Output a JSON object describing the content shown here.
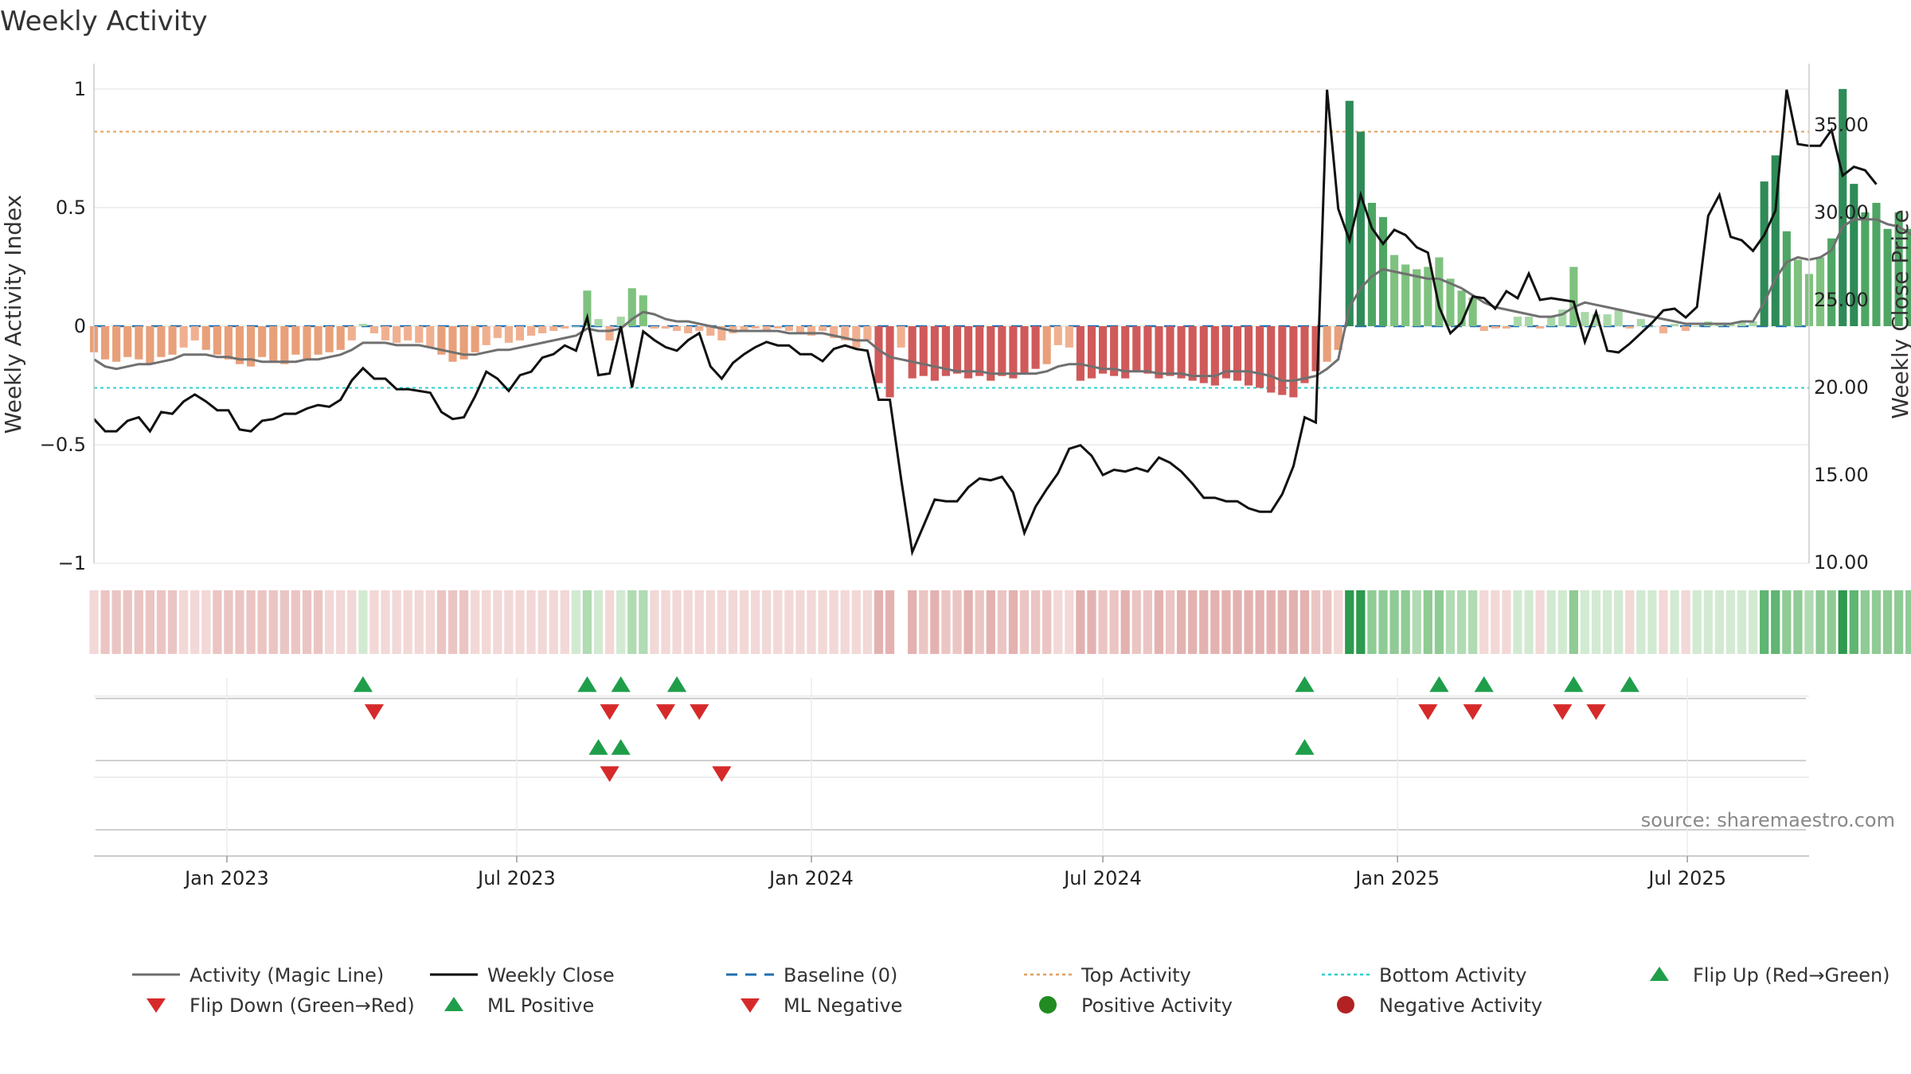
{
  "chart_data": {
    "type": "bar",
    "title": "Weekly Activity",
    "source": "source: sharemaestro.com",
    "ylabel_left": "Weekly Activity Index",
    "ylabel_right": "Weekly Close Price",
    "ylim_left": [
      -1.1,
      1.1
    ],
    "ylim_right": [
      8.6,
      38.4
    ],
    "xlim": [
      "2022-10-10",
      "2025-09-15"
    ],
    "left_ticks": [
      {
        "value": 1,
        "label": "1"
      },
      {
        "value": 0.5,
        "label": "0.5"
      },
      {
        "value": 0,
        "label": "0"
      },
      {
        "value": -0.5,
        "label": "−0.5"
      },
      {
        "value": -1,
        "label": "−1"
      }
    ],
    "right_ticks": [
      {
        "value": 35,
        "label": "35.00"
      },
      {
        "value": 30,
        "label": "30.00"
      },
      {
        "value": 25,
        "label": "25.00"
      },
      {
        "value": 20,
        "label": "20.00"
      },
      {
        "value": 15,
        "label": "15.00"
      },
      {
        "value": 10,
        "label": "10.00"
      }
    ],
    "x_ticks": [
      {
        "date": "2023-01-01",
        "label": "Jan 2023"
      },
      {
        "date": "2023-07-01",
        "label": "Jul 2023"
      },
      {
        "date": "2024-01-01",
        "label": "Jan 2024"
      },
      {
        "date": "2024-07-01",
        "label": "Jul 2024"
      },
      {
        "date": "2025-01-01",
        "label": "Jan 2025"
      },
      {
        "date": "2025-07-01",
        "label": "Jul 2025"
      }
    ],
    "start_week": "2022-10-10",
    "interval_days": 7,
    "reference_lines": {
      "top": 0.82,
      "bottom": -0.26,
      "baseline": 0
    },
    "activity": [
      -0.11,
      -0.14,
      -0.15,
      -0.13,
      -0.14,
      -0.16,
      -0.13,
      -0.12,
      -0.09,
      -0.06,
      -0.1,
      -0.12,
      -0.14,
      -0.16,
      -0.17,
      -0.13,
      -0.15,
      -0.16,
      -0.12,
      -0.14,
      -0.12,
      -0.11,
      -0.1,
      -0.06,
      0.01,
      -0.03,
      -0.06,
      -0.07,
      -0.06,
      -0.07,
      -0.09,
      -0.12,
      -0.15,
      -0.14,
      -0.11,
      -0.08,
      -0.05,
      -0.07,
      -0.06,
      -0.04,
      -0.03,
      -0.02,
      -0.01,
      0,
      0.15,
      0.03,
      -0.06,
      0.04,
      0.16,
      0.13,
      -0.01,
      -0.01,
      -0.02,
      -0.03,
      -0.02,
      -0.04,
      -0.06,
      -0.03,
      -0.02,
      -0.01,
      -0.02,
      -0.01,
      -0.02,
      -0.03,
      -0.04,
      -0.02,
      -0.05,
      -0.06,
      -0.09,
      -0.06,
      -0.24,
      -0.3,
      -0.09,
      -0.22,
      -0.21,
      -0.23,
      -0.21,
      -0.2,
      -0.22,
      -0.21,
      -0.23,
      -0.21,
      -0.22,
      -0.2,
      -0.18,
      -0.16,
      -0.08,
      -0.09,
      -0.23,
      -0.22,
      -0.2,
      -0.21,
      -0.22,
      -0.19,
      -0.2,
      -0.22,
      -0.21,
      -0.22,
      -0.23,
      -0.24,
      -0.25,
      -0.22,
      -0.23,
      -0.25,
      -0.26,
      -0.28,
      -0.29,
      -0.3,
      -0.24,
      -0.19,
      -0.15,
      -0.1,
      0.95,
      0.82,
      0.52,
      0.46,
      0.3,
      0.26,
      0.24,
      0.25,
      0.29,
      0.2,
      0.15,
      0.12,
      -0.02,
      -0.01,
      -0.01,
      0.04,
      0.04,
      -0.01,
      0.04,
      0.07,
      0.25,
      0.06,
      0.05,
      0.05,
      0.07,
      -0.01,
      0.03,
      0,
      -0.03,
      0.01,
      -0.02,
      0,
      0.02,
      0.01,
      0.01,
      0.02,
      0.02,
      0.61,
      0.72,
      0.4,
      0.28,
      0.22,
      0.29,
      0.37,
      1,
      0.6,
      0.48,
      0.52,
      0.41,
      0.48,
      0.41,
      0.3,
      0.29,
      0.26
    ],
    "magic_line": [
      -0.14,
      -0.17,
      -0.18,
      -0.17,
      -0.16,
      -0.16,
      -0.15,
      -0.14,
      -0.12,
      -0.12,
      -0.12,
      -0.13,
      -0.13,
      -0.14,
      -0.14,
      -0.15,
      -0.15,
      -0.15,
      -0.15,
      -0.14,
      -0.14,
      -0.13,
      -0.12,
      -0.1,
      -0.07,
      -0.07,
      -0.07,
      -0.08,
      -0.08,
      -0.08,
      -0.09,
      -0.1,
      -0.11,
      -0.12,
      -0.12,
      -0.11,
      -0.1,
      -0.1,
      -0.09,
      -0.08,
      -0.07,
      -0.06,
      -0.05,
      -0.04,
      -0.01,
      -0.02,
      -0.02,
      -0.01,
      0.03,
      0.06,
      0.05,
      0.03,
      0.02,
      0.02,
      0.01,
      0,
      -0.01,
      -0.02,
      -0.02,
      -0.02,
      -0.02,
      -0.02,
      -0.03,
      -0.03,
      -0.03,
      -0.03,
      -0.04,
      -0.05,
      -0.06,
      -0.06,
      -0.1,
      -0.13,
      -0.14,
      -0.15,
      -0.16,
      -0.17,
      -0.18,
      -0.19,
      -0.19,
      -0.19,
      -0.2,
      -0.2,
      -0.2,
      -0.2,
      -0.2,
      -0.19,
      -0.17,
      -0.16,
      -0.16,
      -0.17,
      -0.18,
      -0.18,
      -0.19,
      -0.19,
      -0.19,
      -0.2,
      -0.2,
      -0.2,
      -0.21,
      -0.21,
      -0.21,
      -0.19,
      -0.19,
      -0.19,
      -0.2,
      -0.21,
      -0.23,
      -0.23,
      -0.22,
      -0.21,
      -0.18,
      -0.14,
      0.08,
      0.16,
      0.21,
      0.24,
      0.23,
      0.22,
      0.21,
      0.2,
      0.2,
      0.18,
      0.16,
      0.13,
      0.1,
      0.08,
      0.07,
      0.06,
      0.05,
      0.04,
      0.04,
      0.05,
      0.08,
      0.1,
      0.09,
      0.08,
      0.07,
      0.06,
      0.05,
      0.04,
      0.03,
      0.02,
      0.01,
      0.01,
      0.01,
      0.01,
      0.01,
      0.02,
      0.02,
      0.1,
      0.2,
      0.27,
      0.29,
      0.28,
      0.29,
      0.32,
      0.42,
      0.45,
      0.45,
      0.45,
      0.43,
      0.42,
      0.39,
      0.36,
      0.33,
      0.3
    ],
    "weekly_close": [
      18.2,
      17.5,
      17.5,
      18.1,
      18.3,
      17.5,
      18.6,
      18.5,
      19.2,
      19.6,
      19.2,
      18.7,
      18.7,
      17.6,
      17.5,
      18.1,
      18.2,
      18.5,
      18.5,
      18.8,
      19,
      18.9,
      19.3,
      20.4,
      21.1,
      20.5,
      20.5,
      19.9,
      19.9,
      19.8,
      19.7,
      18.6,
      18.2,
      18.3,
      19.5,
      20.9,
      20.5,
      19.8,
      20.7,
      20.9,
      21.7,
      21.9,
      22.4,
      22.1,
      24,
      20.7,
      20.8,
      23.5,
      20,
      23.2,
      22.7,
      22.3,
      22.1,
      22.7,
      23.1,
      21.2,
      20.5,
      21.4,
      21.9,
      22.3,
      22.6,
      22.4,
      22.4,
      21.9,
      21.9,
      21.5,
      22.2,
      22.4,
      22.2,
      22.1,
      19.3,
      19.3,
      14.8,
      10.6,
      12.1,
      13.6,
      13.5,
      13.5,
      14.3,
      14.8,
      14.7,
      14.9,
      14,
      11.7,
      13.2,
      14.2,
      15.1,
      16.5,
      16.7,
      16.1,
      15,
      15.3,
      15.2,
      15.4,
      15.2,
      16,
      15.7,
      15.2,
      14.5,
      13.7,
      13.7,
      13.5,
      13.5,
      13.1,
      12.9,
      12.9,
      13.9,
      15.5,
      18.3,
      18,
      37,
      30.2,
      28.4,
      31,
      29.1,
      28.2,
      29,
      28.7,
      28,
      27.7,
      24.6,
      23.1,
      23.7,
      25.2,
      25.1,
      24.5,
      25.5,
      25.1,
      26.5,
      25,
      25.1,
      25,
      24.9,
      22.6,
      24.3,
      22.1,
      22,
      22.5,
      23.1,
      23.7,
      24.4,
      24.5,
      24,
      24.6,
      29.8,
      31,
      28.6,
      28.4,
      27.8,
      28.7,
      30.1,
      37,
      33.9,
      33.8,
      33.8,
      34.7,
      32.1,
      32.6,
      32.4,
      31.6
    ],
    "strip": {
      "weeks": [
        -0.11,
        -0.14,
        -0.15,
        -0.13,
        -0.14,
        -0.16,
        -0.13,
        -0.12,
        -0.09,
        -0.06,
        -0.1,
        -0.12,
        -0.14,
        -0.16,
        -0.17,
        -0.13,
        -0.15,
        -0.16,
        -0.12,
        -0.14,
        -0.12,
        -0.11,
        -0.1,
        -0.06,
        0.01,
        -0.03,
        -0.06,
        -0.07,
        -0.06,
        -0.07,
        -0.09,
        -0.12,
        -0.15,
        -0.14,
        -0.11,
        -0.08,
        -0.05,
        -0.07,
        -0.06,
        -0.04,
        -0.03,
        -0.02,
        -0.01,
        0,
        0.15,
        0.03,
        -0.06,
        0.04,
        0.16,
        0.13,
        -0.01,
        -0.01,
        -0.02,
        -0.03,
        -0.02,
        -0.04,
        -0.06,
        -0.03,
        -0.02,
        -0.01,
        -0.02,
        -0.01,
        -0.02,
        -0.03,
        -0.04,
        -0.02,
        -0.05,
        -0.06,
        -0.09,
        -0.06,
        -0.24,
        -0.3,
        null,
        -0.22,
        -0.21,
        -0.23,
        -0.21,
        -0.2,
        -0.22,
        -0.21,
        -0.23,
        -0.21,
        -0.22,
        -0.2,
        -0.18,
        -0.16,
        -0.08,
        -0.09,
        -0.23,
        -0.22,
        -0.2,
        -0.21,
        -0.22,
        -0.19,
        -0.2,
        -0.22,
        -0.21,
        -0.22,
        -0.23,
        -0.24,
        -0.25,
        -0.22,
        -0.23,
        -0.25,
        -0.26,
        -0.28,
        -0.29,
        -0.3,
        -0.24,
        -0.19,
        -0.15,
        -0.1,
        0.95,
        0.82,
        0.52,
        0.46,
        0.3,
        0.26,
        0.24,
        0.25,
        0.29,
        0.2,
        0.15,
        0.12,
        -0.02,
        -0.01,
        -0.01,
        0.04,
        0.04,
        -0.01,
        0.04,
        0.07,
        0.25,
        0.06,
        0.05,
        0.05,
        0.07,
        -0.01,
        0.03,
        0,
        -0.03,
        0.01,
        -0.02,
        0,
        0.02,
        0.01,
        0.01,
        0.02,
        0.02,
        0.61,
        0.72,
        0.4,
        0.28,
        0.22,
        0.29,
        0.37,
        1,
        0.6,
        0.48,
        0.52,
        0.41,
        0.48,
        0.41,
        0.3,
        0.29,
        0.26
      ]
    },
    "flip_up": [
      24,
      44,
      47,
      52,
      108,
      120,
      124,
      132,
      137
    ],
    "flip_down": [
      25,
      46,
      51,
      54,
      119,
      123,
      131,
      134
    ],
    "ml_positive": [
      45,
      47,
      108
    ],
    "ml_negative": [
      46,
      56
    ],
    "legend": [
      {
        "key": "magic",
        "label": "Activity (Magic Line)",
        "color": "#6e6e6e"
      },
      {
        "key": "close",
        "label": "Weekly Close",
        "color": "#000000"
      },
      {
        "key": "baseline",
        "label": "Baseline (0)",
        "color": "#1f6fb2"
      },
      {
        "key": "top",
        "label": "Top Activity",
        "color": "#e0a060"
      },
      {
        "key": "bottom",
        "label": "Bottom Activity",
        "color": "#2ecfcf"
      },
      {
        "key": "flipup",
        "label": "Flip Up (Red→Green)",
        "color": "#1f9e4a"
      },
      {
        "key": "flipdown",
        "label": "Flip Down (Green→Red)",
        "color": "#d62a2a"
      },
      {
        "key": "mlpos",
        "label": "ML Positive",
        "color": "#1f9e4a"
      },
      {
        "key": "mlneg",
        "label": "ML Negative",
        "color": "#d62a2a"
      },
      {
        "key": "posact",
        "label": "Positive Activity",
        "color": "#228b22"
      },
      {
        "key": "negact",
        "label": "Negative Activity",
        "color": "#b22222"
      }
    ]
  }
}
